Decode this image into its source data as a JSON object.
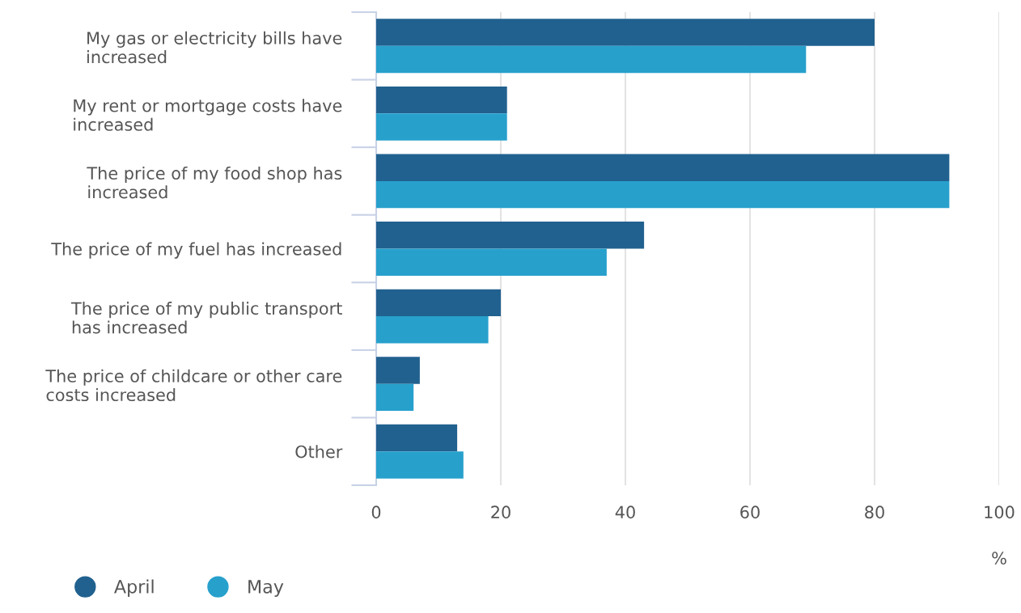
{
  "chart_data": {
    "type": "bar",
    "orientation": "horizontal",
    "xlabel": "%",
    "categories": [
      "My gas or electricity bills have\nincreased",
      "My rent or mortgage costs have\nincreased",
      "The price of my food shop has\nincreased",
      "The price of my fuel has increased",
      "The price of my public transport\nhas increased",
      "The price of childcare or other care\ncosts increased",
      "Other"
    ],
    "series": [
      {
        "name": "April",
        "color": "#21618f",
        "values": [
          80,
          21,
          92,
          43,
          20,
          7,
          13
        ]
      },
      {
        "name": "May",
        "color": "#27a0cc",
        "values": [
          69,
          21,
          92,
          37,
          18,
          6,
          14
        ]
      }
    ],
    "xlim": [
      0,
      100
    ],
    "xticks": [
      0,
      20,
      40,
      60,
      80,
      100
    ],
    "grid": "x",
    "legend": "bottom left"
  }
}
